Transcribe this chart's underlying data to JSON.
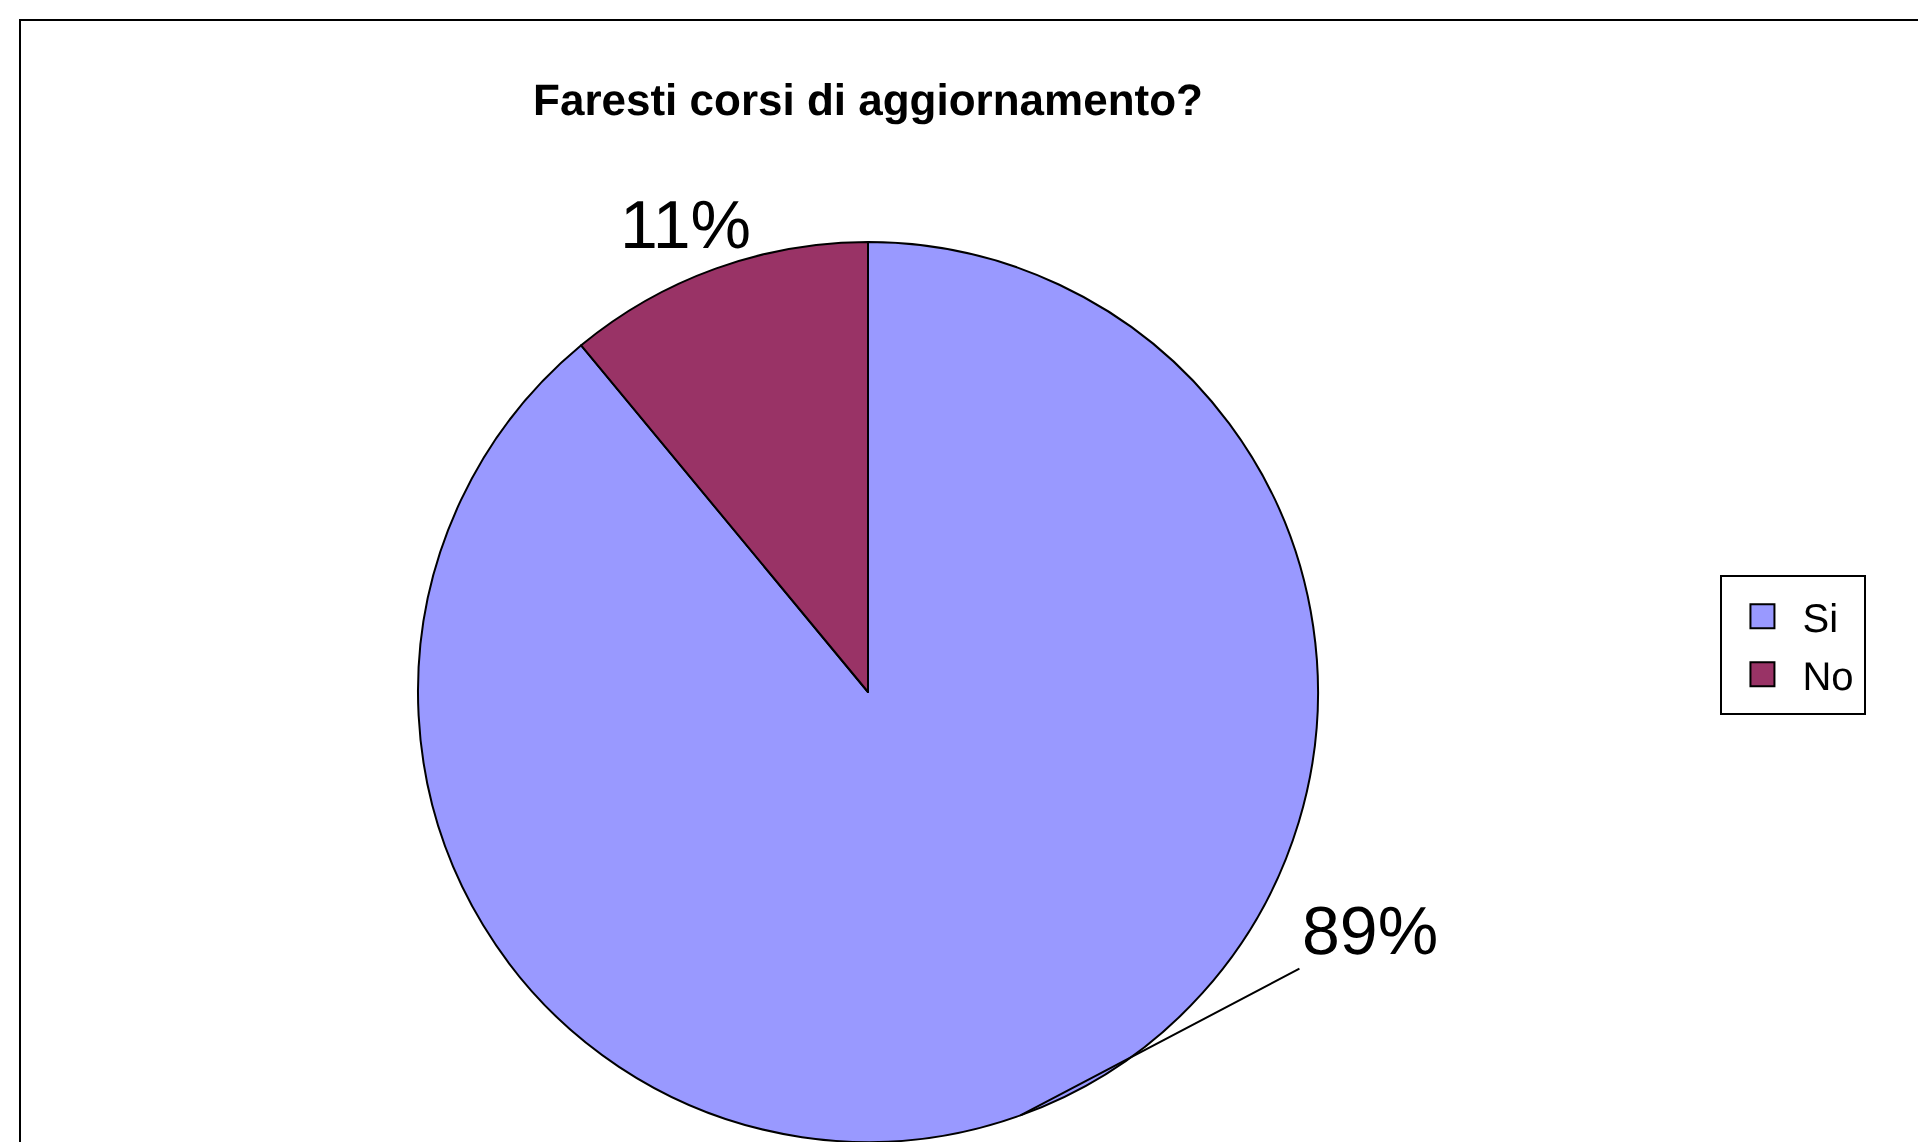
{
  "chart_data": {
    "type": "pie",
    "title": "Faresti corsi di aggiornamento?",
    "categories": [
      "Si",
      "No"
    ],
    "values": [
      89,
      11
    ],
    "colors": [
      "#9999ff",
      "#993366"
    ],
    "value_labels": [
      "89%",
      "11%"
    ],
    "legend": "right"
  }
}
